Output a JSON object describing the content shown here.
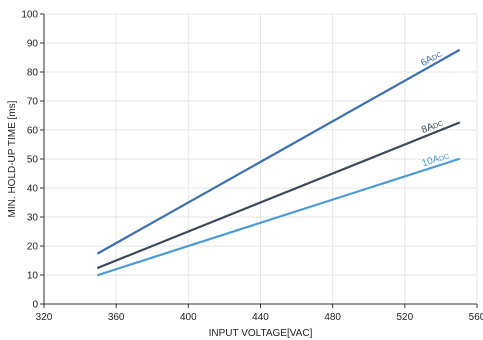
{
  "chart_data": {
    "type": "line",
    "title": "",
    "xlabel": "INPUT VOLTAGE[VAC]",
    "ylabel": "MIN. HOLD-UP TIME [ms]",
    "xlim": [
      320,
      560
    ],
    "ylim": [
      0,
      100
    ],
    "x_ticks": [
      320,
      360,
      400,
      440,
      480,
      520,
      560
    ],
    "y_ticks": [
      0,
      10,
      20,
      30,
      40,
      50,
      60,
      70,
      80,
      90,
      100
    ],
    "grid": true,
    "series": [
      {
        "name": "6A",
        "name_sub": "DC",
        "color": "#3d6fb0",
        "x": [
          350,
          550
        ],
        "values": [
          17.5,
          87.5
        ]
      },
      {
        "name": "8A",
        "name_sub": "DC",
        "color": "#3c4a5a",
        "x": [
          350,
          550
        ],
        "values": [
          12.5,
          62.5
        ]
      },
      {
        "name": "10A",
        "name_sub": "DC",
        "color": "#4d9bd6",
        "x": [
          350,
          550
        ],
        "values": [
          10,
          50
        ]
      }
    ]
  }
}
